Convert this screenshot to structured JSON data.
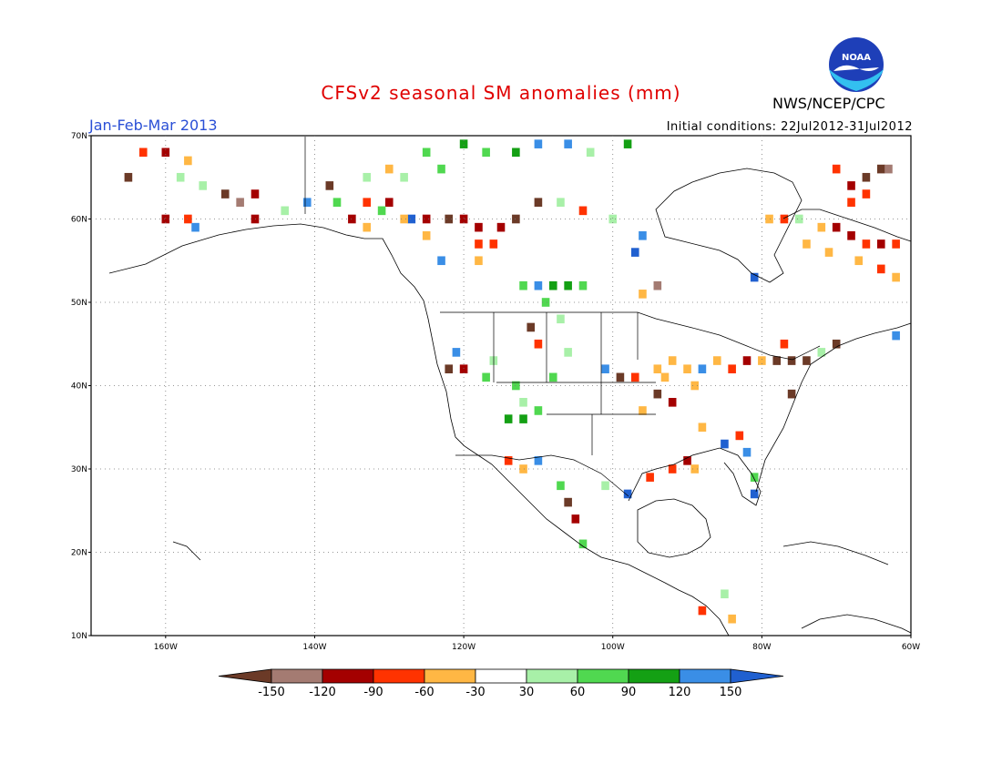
{
  "header": {
    "title": "CFSv2 seasonal SM anomalies (mm)",
    "period": "Jan-Feb-Mar 2013",
    "initial_conditions": "Initial conditions: 22Jul2012-31Jul2012",
    "agency": "NWS/NCEP/CPC",
    "logo_text": "NOAA"
  },
  "axes": {
    "lon_labels": [
      "160W",
      "140W",
      "120W",
      "100W",
      "80W",
      "60W"
    ],
    "lon_values": [
      -160,
      -140,
      -120,
      -100,
      -80,
      -60
    ],
    "lat_labels": [
      "70N",
      "60N",
      "50N",
      "40N",
      "30N",
      "20N",
      "10N"
    ],
    "lat_values": [
      70,
      60,
      50,
      40,
      30,
      20,
      10
    ],
    "lon_range": [
      -170,
      -60
    ],
    "lat_range": [
      10,
      70
    ],
    "grid": true
  },
  "colorbar": {
    "labels": [
      "-150",
      "-120",
      "-90",
      "-60",
      "-30",
      "30",
      "60",
      "90",
      "120",
      "150"
    ],
    "colors": [
      "#6b3a27",
      "#a47b72",
      "#a40000",
      "#ff3300",
      "#ffb744",
      "#ffffff",
      "#a8f0a8",
      "#50d850",
      "#14a014",
      "#3a8ee6",
      "#2060d0"
    ]
  },
  "anomaly_cells": [
    {
      "lon": -163,
      "lat": 68,
      "c": "#ff3300"
    },
    {
      "lon": -160,
      "lat": 68,
      "c": "#a40000"
    },
    {
      "lon": -157,
      "lat": 67,
      "c": "#ffb744"
    },
    {
      "lon": -165,
      "lat": 65,
      "c": "#6b3a27"
    },
    {
      "lon": -158,
      "lat": 65,
      "c": "#a8f0a8"
    },
    {
      "lon": -155,
      "lat": 64,
      "c": "#a8f0a8"
    },
    {
      "lon": -152,
      "lat": 63,
      "c": "#6b3a27"
    },
    {
      "lon": -150,
      "lat": 62,
      "c": "#a47b72"
    },
    {
      "lon": -148,
      "lat": 63,
      "c": "#a40000"
    },
    {
      "lon": -160,
      "lat": 60,
      "c": "#a40000"
    },
    {
      "lon": -157,
      "lat": 60,
      "c": "#ff3300"
    },
    {
      "lon": -156,
      "lat": 59,
      "c": "#3a8ee6"
    },
    {
      "lon": -148,
      "lat": 60,
      "c": "#a40000"
    },
    {
      "lon": -144,
      "lat": 61,
      "c": "#a8f0a8"
    },
    {
      "lon": -141,
      "lat": 62,
      "c": "#3a8ee6"
    },
    {
      "lon": -138,
      "lat": 64,
      "c": "#6b3a27"
    },
    {
      "lon": -137,
      "lat": 62,
      "c": "#50d850"
    },
    {
      "lon": -135,
      "lat": 60,
      "c": "#a40000"
    },
    {
      "lon": -133,
      "lat": 59,
      "c": "#ffb744"
    },
    {
      "lon": -130,
      "lat": 62,
      "c": "#a40000"
    },
    {
      "lon": -127,
      "lat": 60,
      "c": "#2060d0"
    },
    {
      "lon": -125,
      "lat": 60,
      "c": "#a40000"
    },
    {
      "lon": -122,
      "lat": 60,
      "c": "#6b3a27"
    },
    {
      "lon": -120,
      "lat": 60,
      "c": "#a40000"
    },
    {
      "lon": -118,
      "lat": 59,
      "c": "#a40000"
    },
    {
      "lon": -118,
      "lat": 57,
      "c": "#ff3300"
    },
    {
      "lon": -116,
      "lat": 57,
      "c": "#ff3300"
    },
    {
      "lon": -115,
      "lat": 59,
      "c": "#a40000"
    },
    {
      "lon": -113,
      "lat": 60,
      "c": "#6b3a27"
    },
    {
      "lon": -110,
      "lat": 62,
      "c": "#6b3a27"
    },
    {
      "lon": -107,
      "lat": 62,
      "c": "#a8f0a8"
    },
    {
      "lon": -104,
      "lat": 61,
      "c": "#ff3300"
    },
    {
      "lon": -100,
      "lat": 60,
      "c": "#a8f0a8"
    },
    {
      "lon": -125,
      "lat": 68,
      "c": "#50d850"
    },
    {
      "lon": -120,
      "lat": 69,
      "c": "#14a014"
    },
    {
      "lon": -117,
      "lat": 68,
      "c": "#50d850"
    },
    {
      "lon": -113,
      "lat": 68,
      "c": "#14a014"
    },
    {
      "lon": -110,
      "lat": 69,
      "c": "#3a8ee6"
    },
    {
      "lon": -106,
      "lat": 69,
      "c": "#3a8ee6"
    },
    {
      "lon": -103,
      "lat": 68,
      "c": "#a8f0a8"
    },
    {
      "lon": -98,
      "lat": 69,
      "c": "#14a014"
    },
    {
      "lon": -128,
      "lat": 65,
      "c": "#a8f0a8"
    },
    {
      "lon": -123,
      "lat": 66,
      "c": "#50d850"
    },
    {
      "lon": -130,
      "lat": 66,
      "c": "#ffb744"
    },
    {
      "lon": -133,
      "lat": 65,
      "c": "#a8f0a8"
    },
    {
      "lon": -112,
      "lat": 52,
      "c": "#50d850"
    },
    {
      "lon": -110,
      "lat": 52,
      "c": "#3a8ee6"
    },
    {
      "lon": -108,
      "lat": 52,
      "c": "#14a014"
    },
    {
      "lon": -106,
      "lat": 52,
      "c": "#14a014"
    },
    {
      "lon": -104,
      "lat": 52,
      "c": "#50d850"
    },
    {
      "lon": -109,
      "lat": 50,
      "c": "#50d850"
    },
    {
      "lon": -107,
      "lat": 48,
      "c": "#a8f0a8"
    },
    {
      "lon": -111,
      "lat": 47,
      "c": "#6b3a27"
    },
    {
      "lon": -110,
      "lat": 45,
      "c": "#ff3300"
    },
    {
      "lon": -106,
      "lat": 44,
      "c": "#a8f0a8"
    },
    {
      "lon": -108,
      "lat": 41,
      "c": "#50d850"
    },
    {
      "lon": -113,
      "lat": 40,
      "c": "#50d850"
    },
    {
      "lon": -112,
      "lat": 38,
      "c": "#a8f0a8"
    },
    {
      "lon": -114,
      "lat": 36,
      "c": "#14a014"
    },
    {
      "lon": -112,
      "lat": 36,
      "c": "#14a014"
    },
    {
      "lon": -110,
      "lat": 37,
      "c": "#50d850"
    },
    {
      "lon": -117,
      "lat": 41,
      "c": "#50d850"
    },
    {
      "lon": -120,
      "lat": 42,
      "c": "#a40000"
    },
    {
      "lon": -122,
      "lat": 42,
      "c": "#6b3a27"
    },
    {
      "lon": -121,
      "lat": 44,
      "c": "#3a8ee6"
    },
    {
      "lon": -116,
      "lat": 43,
      "c": "#a8f0a8"
    },
    {
      "lon": -110,
      "lat": 31,
      "c": "#3a8ee6"
    },
    {
      "lon": -112,
      "lat": 30,
      "c": "#ffb744"
    },
    {
      "lon": -114,
      "lat": 31,
      "c": "#ff3300"
    },
    {
      "lon": -107,
      "lat": 28,
      "c": "#50d850"
    },
    {
      "lon": -106,
      "lat": 26,
      "c": "#6b3a27"
    },
    {
      "lon": -105,
      "lat": 24,
      "c": "#a40000"
    },
    {
      "lon": -104,
      "lat": 21,
      "c": "#50d850"
    },
    {
      "lon": -101,
      "lat": 28,
      "c": "#a8f0a8"
    },
    {
      "lon": -98,
      "lat": 27,
      "c": "#2060d0"
    },
    {
      "lon": -95,
      "lat": 29,
      "c": "#ff3300"
    },
    {
      "lon": -92,
      "lat": 30,
      "c": "#ff3300"
    },
    {
      "lon": -90,
      "lat": 31,
      "c": "#a40000"
    },
    {
      "lon": -89,
      "lat": 30,
      "c": "#ffb744"
    },
    {
      "lon": -85,
      "lat": 33,
      "c": "#2060d0"
    },
    {
      "lon": -83,
      "lat": 34,
      "c": "#ff3300"
    },
    {
      "lon": -82,
      "lat": 32,
      "c": "#3a8ee6"
    },
    {
      "lon": -81,
      "lat": 29,
      "c": "#50d850"
    },
    {
      "lon": -81,
      "lat": 27,
      "c": "#2060d0"
    },
    {
      "lon": -88,
      "lat": 35,
      "c": "#ffb744"
    },
    {
      "lon": -94,
      "lat": 42,
      "c": "#ffb744"
    },
    {
      "lon": -92,
      "lat": 43,
      "c": "#ffb744"
    },
    {
      "lon": -90,
      "lat": 42,
      "c": "#ffb744"
    },
    {
      "lon": -93,
      "lat": 41,
      "c": "#ffb744"
    },
    {
      "lon": -89,
      "lat": 40,
      "c": "#ffb744"
    },
    {
      "lon": -92,
      "lat": 38,
      "c": "#a40000"
    },
    {
      "lon": -94,
      "lat": 39,
      "c": "#6b3a27"
    },
    {
      "lon": -96,
      "lat": 37,
      "c": "#ffb744"
    },
    {
      "lon": -97,
      "lat": 41,
      "c": "#ff3300"
    },
    {
      "lon": -99,
      "lat": 41,
      "c": "#6b3a27"
    },
    {
      "lon": -101,
      "lat": 42,
      "c": "#3a8ee6"
    },
    {
      "lon": -88,
      "lat": 42,
      "c": "#3a8ee6"
    },
    {
      "lon": -86,
      "lat": 43,
      "c": "#ffb744"
    },
    {
      "lon": -84,
      "lat": 42,
      "c": "#ff3300"
    },
    {
      "lon": -82,
      "lat": 43,
      "c": "#a40000"
    },
    {
      "lon": -80,
      "lat": 43,
      "c": "#ffb744"
    },
    {
      "lon": -78,
      "lat": 43,
      "c": "#6b3a27"
    },
    {
      "lon": -76,
      "lat": 43,
      "c": "#6b3a27"
    },
    {
      "lon": -74,
      "lat": 43,
      "c": "#6b3a27"
    },
    {
      "lon": -72,
      "lat": 44,
      "c": "#a8f0a8"
    },
    {
      "lon": -70,
      "lat": 45,
      "c": "#6b3a27"
    },
    {
      "lon": -76,
      "lat": 39,
      "c": "#6b3a27"
    },
    {
      "lon": -77,
      "lat": 45,
      "c": "#ff3300"
    },
    {
      "lon": -62,
      "lat": 46,
      "c": "#3a8ee6"
    },
    {
      "lon": -81,
      "lat": 53,
      "c": "#2060d0"
    },
    {
      "lon": -96,
      "lat": 51,
      "c": "#ffb744"
    },
    {
      "lon": -94,
      "lat": 52,
      "c": "#a47b72"
    },
    {
      "lon": -97,
      "lat": 56,
      "c": "#2060d0"
    },
    {
      "lon": -96,
      "lat": 58,
      "c": "#3a8ee6"
    },
    {
      "lon": -88,
      "lat": 13,
      "c": "#ff3300"
    },
    {
      "lon": -85,
      "lat": 15,
      "c": "#a8f0a8"
    },
    {
      "lon": -84,
      "lat": 12,
      "c": "#ffb744"
    },
    {
      "lon": -79,
      "lat": 60,
      "c": "#ffb744"
    },
    {
      "lon": -77,
      "lat": 60,
      "c": "#ff3300"
    },
    {
      "lon": -75,
      "lat": 60,
      "c": "#a8f0a8"
    },
    {
      "lon": -72,
      "lat": 59,
      "c": "#ffb744"
    },
    {
      "lon": -70,
      "lat": 59,
      "c": "#a40000"
    },
    {
      "lon": -68,
      "lat": 58,
      "c": "#a40000"
    },
    {
      "lon": -66,
      "lat": 57,
      "c": "#ff3300"
    },
    {
      "lon": -64,
      "lat": 57,
      "c": "#a40000"
    },
    {
      "lon": -62,
      "lat": 57,
      "c": "#ff3300"
    },
    {
      "lon": -74,
      "lat": 57,
      "c": "#ffb744"
    },
    {
      "lon": -71,
      "lat": 56,
      "c": "#ffb744"
    },
    {
      "lon": -67,
      "lat": 55,
      "c": "#ffb744"
    },
    {
      "lon": -64,
      "lat": 54,
      "c": "#ff3300"
    },
    {
      "lon": -62,
      "lat": 53,
      "c": "#ffb744"
    },
    {
      "lon": -68,
      "lat": 62,
      "c": "#ff3300"
    },
    {
      "lon": -66,
      "lat": 65,
      "c": "#6b3a27"
    },
    {
      "lon": -64,
      "lat": 66,
      "c": "#6b3a27"
    },
    {
      "lon": -63,
      "lat": 66,
      "c": "#a47b72"
    },
    {
      "lon": -70,
      "lat": 66,
      "c": "#ff3300"
    },
    {
      "lon": -68,
      "lat": 64,
      "c": "#a40000"
    },
    {
      "lon": -66,
      "lat": 63,
      "c": "#ff3300"
    },
    {
      "lon": -118,
      "lat": 55,
      "c": "#ffb744"
    },
    {
      "lon": -123,
      "lat": 55,
      "c": "#3a8ee6"
    },
    {
      "lon": -125,
      "lat": 58,
      "c": "#ffb744"
    },
    {
      "lon": -128,
      "lat": 60,
      "c": "#ffb744"
    },
    {
      "lon": -131,
      "lat": 61,
      "c": "#50d850"
    },
    {
      "lon": -133,
      "lat": 62,
      "c": "#ff3300"
    }
  ]
}
